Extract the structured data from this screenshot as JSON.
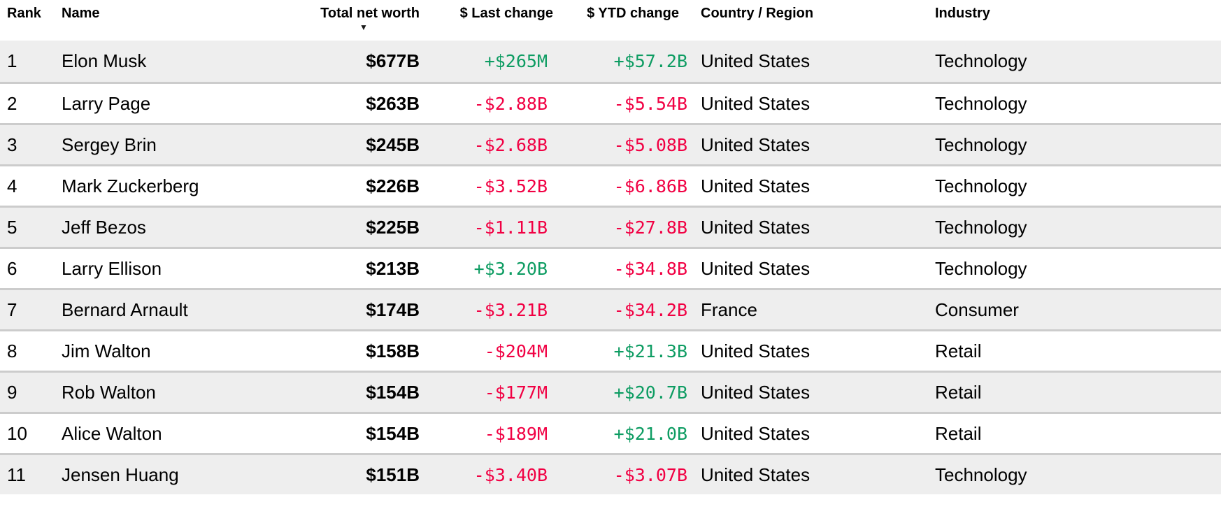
{
  "table": {
    "columns": [
      {
        "key": "rank",
        "label": "Rank"
      },
      {
        "key": "name",
        "label": "Name"
      },
      {
        "key": "net_worth",
        "label": "Total net worth",
        "sorted": "descending"
      },
      {
        "key": "last_change",
        "label": "$ Last change"
      },
      {
        "key": "ytd_change",
        "label": "$ YTD change"
      },
      {
        "key": "country",
        "label": "Country / Region"
      },
      {
        "key": "industry",
        "label": "Industry"
      }
    ],
    "sort_icon": "▼",
    "rows": [
      {
        "rank": "1",
        "name": "Elon Musk",
        "net_worth": "$677B",
        "last_change": "+$265M",
        "ytd_change": "+$57.2B",
        "country": "United States",
        "industry": "Technology"
      },
      {
        "rank": "2",
        "name": "Larry Page",
        "net_worth": "$263B",
        "last_change": "-$2.88B",
        "ytd_change": "-$5.54B",
        "country": "United States",
        "industry": "Technology"
      },
      {
        "rank": "3",
        "name": "Sergey Brin",
        "net_worth": "$245B",
        "last_change": "-$2.68B",
        "ytd_change": "-$5.08B",
        "country": "United States",
        "industry": "Technology"
      },
      {
        "rank": "4",
        "name": "Mark Zuckerberg",
        "net_worth": "$226B",
        "last_change": "-$3.52B",
        "ytd_change": "-$6.86B",
        "country": "United States",
        "industry": "Technology"
      },
      {
        "rank": "5",
        "name": "Jeff Bezos",
        "net_worth": "$225B",
        "last_change": "-$1.11B",
        "ytd_change": "-$27.8B",
        "country": "United States",
        "industry": "Technology"
      },
      {
        "rank": "6",
        "name": "Larry Ellison",
        "net_worth": "$213B",
        "last_change": "+$3.20B",
        "ytd_change": "-$34.8B",
        "country": "United States",
        "industry": "Technology"
      },
      {
        "rank": "7",
        "name": "Bernard Arnault",
        "net_worth": "$174B",
        "last_change": "-$3.21B",
        "ytd_change": "-$34.2B",
        "country": "France",
        "industry": "Consumer"
      },
      {
        "rank": "8",
        "name": "Jim Walton",
        "net_worth": "$158B",
        "last_change": "-$204M",
        "ytd_change": "+$21.3B",
        "country": "United States",
        "industry": "Retail"
      },
      {
        "rank": "9",
        "name": "Rob Walton",
        "net_worth": "$154B",
        "last_change": "-$177M",
        "ytd_change": "+$20.7B",
        "country": "United States",
        "industry": "Retail"
      },
      {
        "rank": "10",
        "name": "Alice Walton",
        "net_worth": "$154B",
        "last_change": "-$189M",
        "ytd_change": "+$21.0B",
        "country": "United States",
        "industry": "Retail"
      },
      {
        "rank": "11",
        "name": "Jensen Huang",
        "net_worth": "$151B",
        "last_change": "-$3.40B",
        "ytd_change": "-$3.07B",
        "country": "United States",
        "industry": "Technology"
      }
    ]
  },
  "colors": {
    "positive": "#0d9c62",
    "negative": "#f10043",
    "row_alt": "#eeeeee",
    "divider": "#cccccc"
  }
}
